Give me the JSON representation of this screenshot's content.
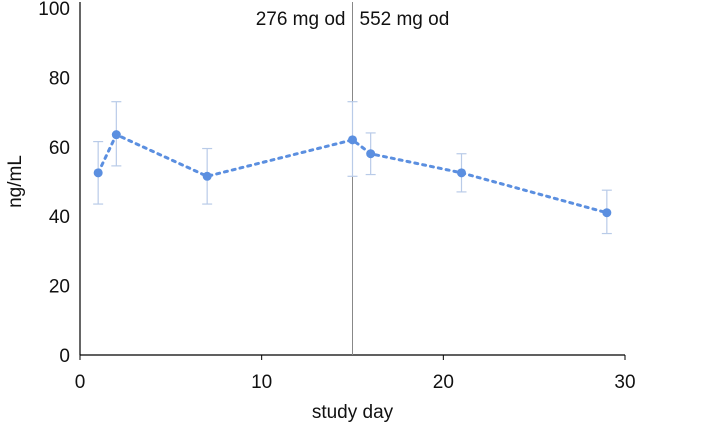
{
  "chart_data": {
    "type": "scatter",
    "xlabel": "study day",
    "ylabel": "ng/mL",
    "xlim": [
      0,
      30
    ],
    "ylim": [
      0,
      100
    ],
    "xticks": [
      0,
      10,
      20,
      30
    ],
    "yticks": [
      0,
      20,
      40,
      60,
      80,
      100
    ],
    "grid": false,
    "series": [
      {
        "color": "#5b8fe0",
        "errorbar_color": "#b9cbe8",
        "line_style": "dotted",
        "points": [
          {
            "x": 1,
            "y": 52.5,
            "err_low": 43.5,
            "err_high": 61.5
          },
          {
            "x": 2,
            "y": 63.5,
            "err_low": 54.5,
            "err_high": 73
          },
          {
            "x": 7,
            "y": 51.5,
            "err_low": 43.5,
            "err_high": 59.5
          },
          {
            "x": 15,
            "y": 62,
            "err_low": 51.5,
            "err_high": 73
          },
          {
            "x": 16,
            "y": 58,
            "err_low": 52,
            "err_high": 64
          },
          {
            "x": 21,
            "y": 52.5,
            "err_low": 47,
            "err_high": 58
          },
          {
            "x": 29,
            "y": 41,
            "err_low": 35,
            "err_high": 47.5
          }
        ]
      }
    ],
    "reference_line": {
      "x": 15,
      "color": "#888888"
    },
    "annotations": {
      "left_of_line": "276 mg od",
      "right_of_line": "552 mg od"
    }
  }
}
